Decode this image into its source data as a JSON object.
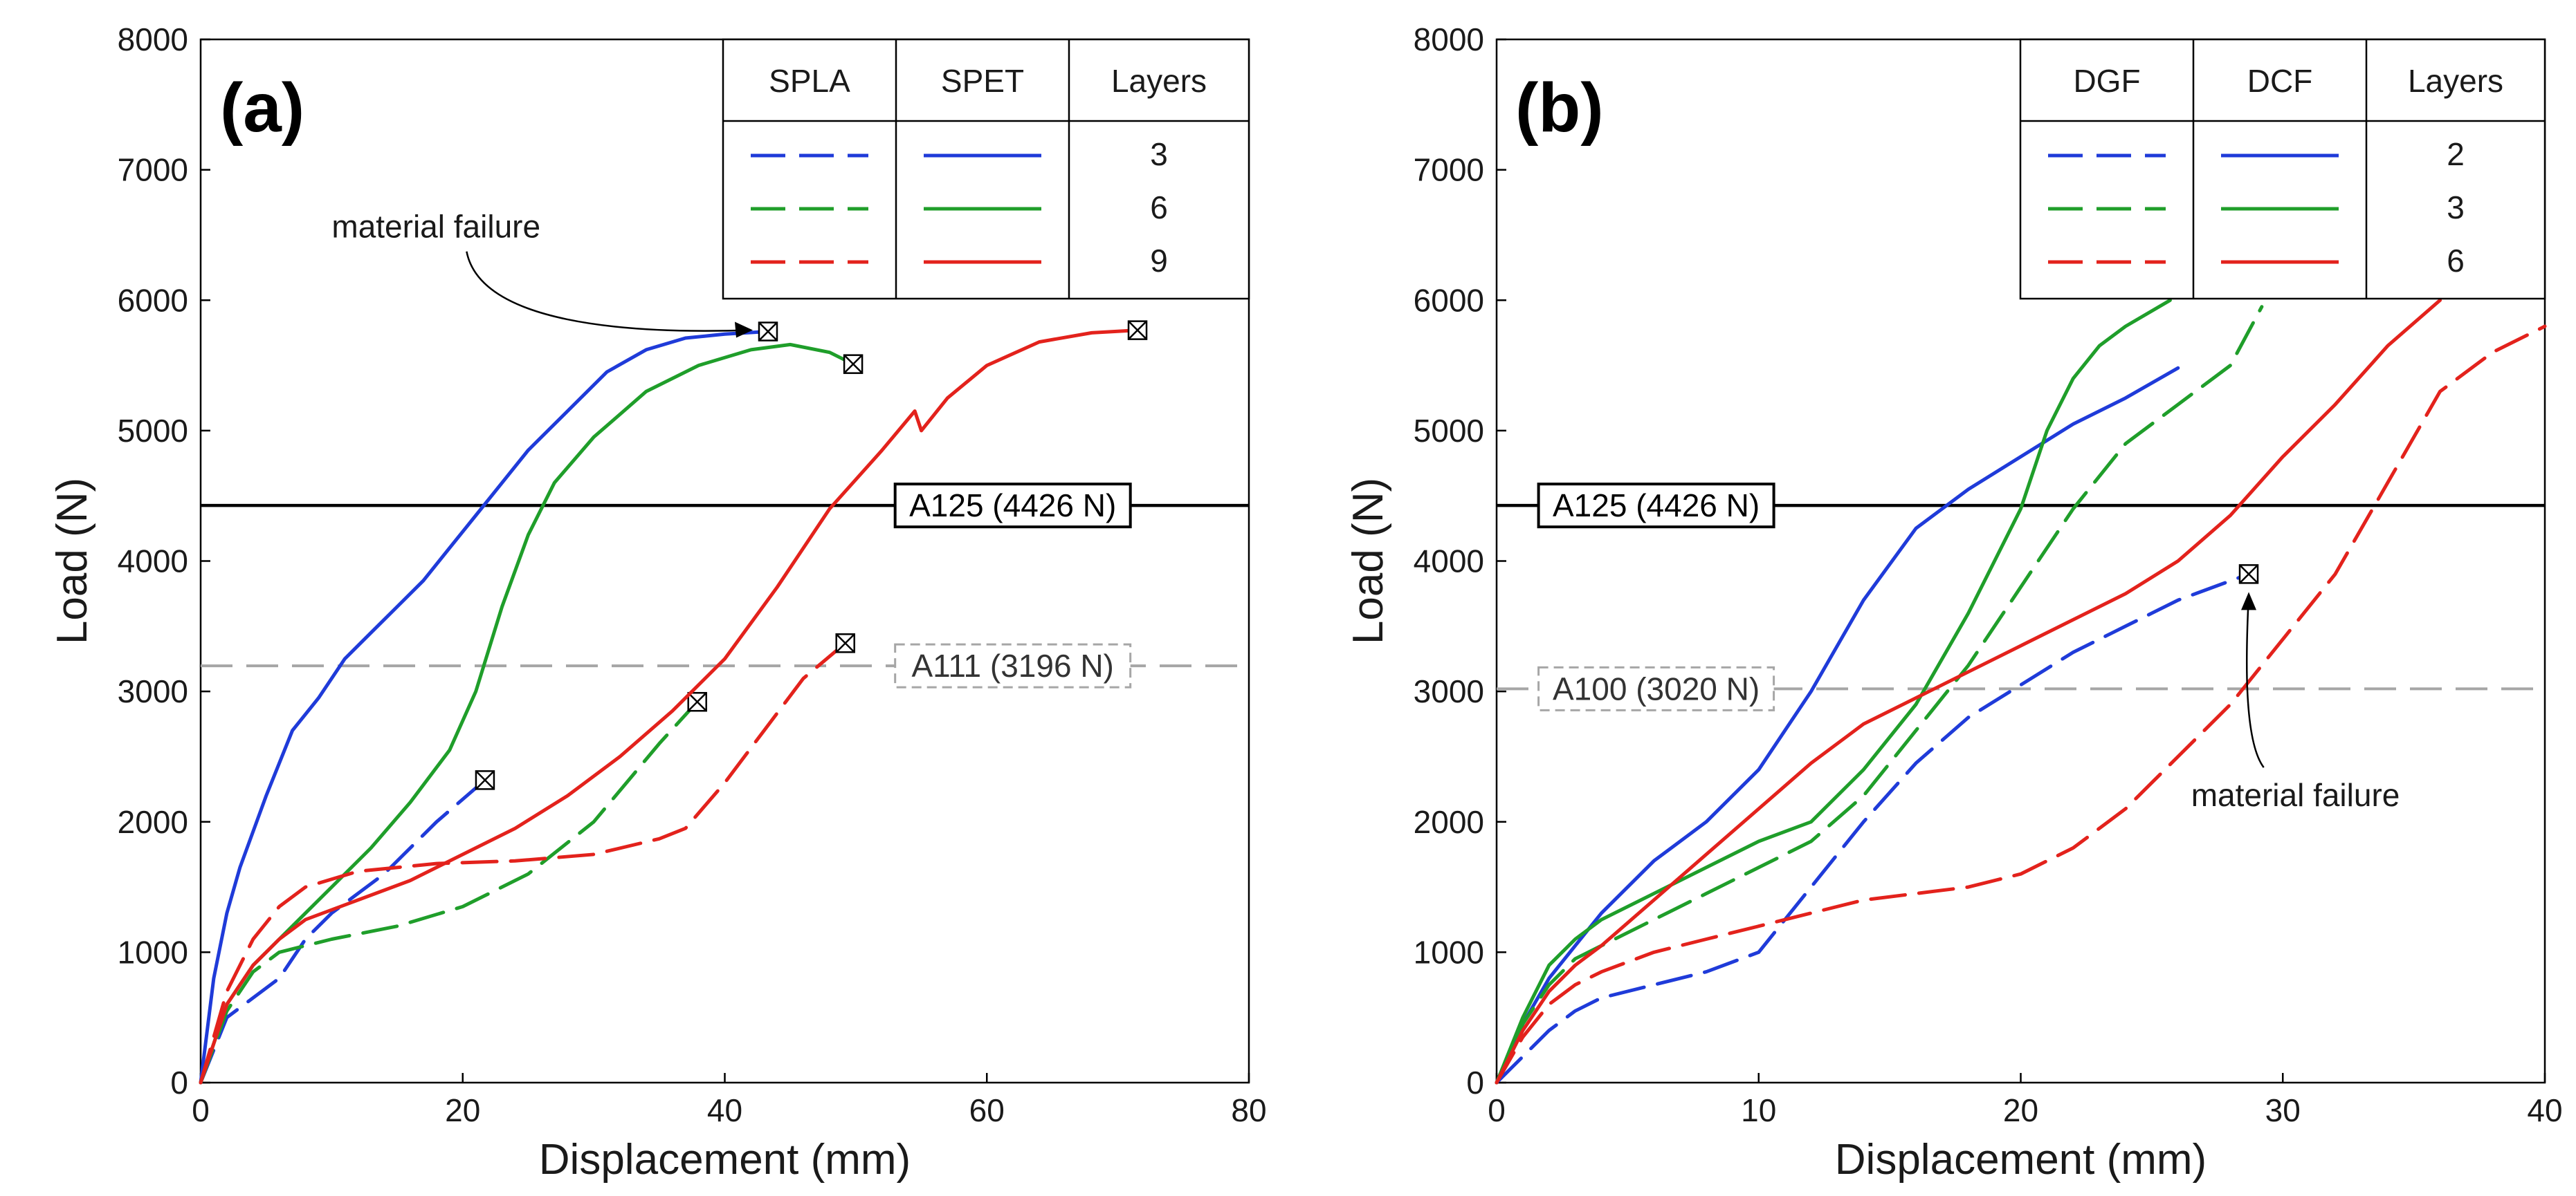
{
  "chart_data": [
    {
      "type": "line",
      "panel_label": "(a)",
      "xlabel": "Displacement (mm)",
      "ylabel": "Load (N)",
      "xlim": [
        0,
        80
      ],
      "ylim": [
        0,
        8000
      ],
      "xticks": [
        "0",
        "20",
        "40",
        "60",
        "80"
      ],
      "yticks": [
        "0",
        "1000",
        "2000",
        "3000",
        "4000",
        "5000",
        "6000",
        "7000",
        "8000"
      ],
      "legend": {
        "headers": [
          "SPLA",
          "SPET",
          "Layers"
        ],
        "rows": [
          "3",
          "6",
          "9"
        ]
      },
      "reference_lines": [
        {
          "label": "A125 (4426 N)",
          "value": 4426,
          "style": "solid",
          "color": "#000000",
          "label_x": 53
        },
        {
          "label": "A111 (3196 N)",
          "value": 3196,
          "style": "dashed",
          "color": "#a6a6a6",
          "label_x": 53
        }
      ],
      "annotation": {
        "text": "material failure",
        "text_x": 10,
        "text_y": 6480,
        "target_x": 43.3,
        "target_y": 5760
      },
      "series": [
        {
          "name": "SPLA 3",
          "color": "#1f3bd9",
          "dash": "dashed",
          "x": [
            0,
            2,
            4,
            6,
            8,
            10,
            14,
            18,
            21.7
          ],
          "y": [
            0,
            500,
            650,
            800,
            1100,
            1300,
            1600,
            2000,
            2320
          ],
          "failure": [
            21.7,
            2320
          ]
        },
        {
          "name": "SPET 3",
          "color": "#1f3bd9",
          "dash": "solid",
          "x": [
            0,
            1,
            2,
            3,
            5,
            7,
            9,
            11,
            13,
            15,
            17,
            19,
            21,
            23,
            25,
            28,
            31,
            34,
            37,
            40,
            43.3
          ],
          "y": [
            0,
            800,
            1300,
            1650,
            2200,
            2700,
            2950,
            3250,
            3450,
            3650,
            3850,
            4100,
            4350,
            4600,
            4850,
            5150,
            5450,
            5620,
            5710,
            5740,
            5760
          ],
          "failure": [
            43.3,
            5760
          ]
        },
        {
          "name": "SPLA 6",
          "color": "#1f9e2a",
          "dash": "dashed",
          "x": [
            0,
            2,
            4,
            6,
            10,
            15,
            20,
            25,
            30,
            35,
            37.9
          ],
          "y": [
            0,
            550,
            850,
            1000,
            1100,
            1200,
            1350,
            1600,
            2000,
            2600,
            2920
          ],
          "failure": [
            37.9,
            2920
          ]
        },
        {
          "name": "SPET 6",
          "color": "#1f9e2a",
          "dash": "solid",
          "x": [
            0,
            2,
            4,
            6,
            8,
            10,
            13,
            16,
            19,
            21,
            23,
            25,
            27,
            30,
            34,
            38,
            42,
            45,
            48,
            49.8
          ],
          "y": [
            0,
            600,
            900,
            1100,
            1300,
            1500,
            1800,
            2150,
            2550,
            3000,
            3650,
            4200,
            4600,
            4950,
            5300,
            5500,
            5620,
            5660,
            5600,
            5510
          ],
          "failure": [
            49.8,
            5510
          ]
        },
        {
          "name": "SPLA 9",
          "color": "#e3221c",
          "dash": "dashed",
          "x": [
            0,
            2,
            4,
            6,
            8,
            12,
            18,
            24,
            30,
            35,
            37,
            40,
            43,
            46,
            49.2
          ],
          "y": [
            0,
            700,
            1100,
            1350,
            1500,
            1620,
            1680,
            1700,
            1750,
            1870,
            1950,
            2300,
            2700,
            3100,
            3370
          ],
          "failure": [
            49.2,
            3370
          ]
        },
        {
          "name": "SPET 9",
          "color": "#e3221c",
          "dash": "solid",
          "x": [
            0,
            2,
            4,
            6,
            8,
            12,
            16,
            20,
            24,
            28,
            32,
            36,
            40,
            44,
            48,
            52,
            54.5,
            55,
            57,
            60,
            64,
            68,
            71.5
          ],
          "y": [
            0,
            600,
            900,
            1100,
            1250,
            1400,
            1550,
            1750,
            1950,
            2200,
            2500,
            2850,
            3250,
            3800,
            4400,
            4850,
            5150,
            5000,
            5250,
            5500,
            5680,
            5750,
            5770
          ],
          "failure": [
            71.5,
            5770
          ]
        }
      ]
    },
    {
      "type": "line",
      "panel_label": "(b)",
      "xlabel": "Displacement (mm)",
      "ylabel": "Load (N)",
      "xlim": [
        0,
        40
      ],
      "ylim": [
        0,
        8000
      ],
      "xticks": [
        "0",
        "10",
        "20",
        "30",
        "40"
      ],
      "yticks": [
        "0",
        "1000",
        "2000",
        "3000",
        "4000",
        "5000",
        "6000",
        "7000",
        "8000"
      ],
      "legend": {
        "headers": [
          "DGF",
          "DCF",
          "Layers"
        ],
        "rows": [
          "2",
          "3",
          "6"
        ]
      },
      "reference_lines": [
        {
          "label": "A125 (4426 N)",
          "value": 4426,
          "style": "solid",
          "color": "#000000",
          "label_x": 1.6
        },
        {
          "label": "A100 (3020 N)",
          "value": 3020,
          "style": "dashed",
          "color": "#a6a6a6",
          "label_x": 1.6
        }
      ],
      "annotation": {
        "text": "material failure",
        "text_x": 26.5,
        "text_y": 2120,
        "target_x": 28.7,
        "target_y": 3900
      },
      "series": [
        {
          "name": "DGF 2",
          "color": "#1f3bd9",
          "dash": "dashed",
          "x": [
            0,
            1,
            2,
            3,
            4,
            6,
            8,
            10,
            12,
            14,
            16,
            18,
            20,
            22,
            24,
            26,
            28.7
          ],
          "y": [
            0,
            200,
            400,
            550,
            650,
            750,
            850,
            1000,
            1500,
            2000,
            2450,
            2800,
            3050,
            3300,
            3500,
            3700,
            3900
          ],
          "failure": [
            28.7,
            3900
          ]
        },
        {
          "name": "DCF 2",
          "color": "#1f3bd9",
          "dash": "solid",
          "x": [
            0,
            1,
            2,
            3,
            4,
            6,
            8,
            10,
            12,
            14,
            16,
            17,
            18,
            20,
            22,
            24,
            26
          ],
          "y": [
            0,
            450,
            800,
            1050,
            1300,
            1700,
            2000,
            2400,
            3000,
            3700,
            4250,
            4400,
            4550,
            4800,
            5050,
            5250,
            5480
          ]
        },
        {
          "name": "DGF 3",
          "color": "#1f9e2a",
          "dash": "dashed",
          "x": [
            0,
            1,
            2,
            3,
            4,
            6,
            8,
            10,
            12,
            14,
            16,
            18,
            20,
            22,
            24,
            26,
            28,
            29.2
          ],
          "y": [
            0,
            450,
            750,
            950,
            1050,
            1250,
            1450,
            1650,
            1850,
            2200,
            2700,
            3200,
            3800,
            4400,
            4900,
            5200,
            5500,
            5950
          ]
        },
        {
          "name": "DCF 3",
          "color": "#1f9e2a",
          "dash": "solid",
          "x": [
            0,
            1,
            2,
            3,
            4,
            6,
            8,
            10,
            12,
            14,
            16,
            18,
            20,
            21,
            22,
            23,
            24,
            25.7
          ],
          "y": [
            0,
            500,
            900,
            1100,
            1250,
            1450,
            1650,
            1850,
            2000,
            2400,
            2900,
            3600,
            4400,
            5000,
            5400,
            5650,
            5800,
            6000
          ]
        },
        {
          "name": "DGF 6",
          "color": "#e3221c",
          "dash": "dashed",
          "x": [
            0,
            1,
            2,
            3,
            4,
            6,
            8,
            10,
            12,
            14,
            16,
            18,
            20,
            22,
            24,
            26,
            28,
            30,
            32,
            34,
            36,
            38,
            40
          ],
          "y": [
            0,
            350,
            600,
            750,
            850,
            1000,
            1100,
            1200,
            1300,
            1400,
            1450,
            1500,
            1600,
            1800,
            2100,
            2500,
            2900,
            3400,
            3900,
            4600,
            5300,
            5600,
            5800
          ]
        },
        {
          "name": "DCF 6",
          "color": "#e3221c",
          "dash": "solid",
          "x": [
            0,
            1,
            2,
            3,
            4,
            6,
            8,
            10,
            12,
            14,
            16,
            18,
            20,
            22,
            24,
            26,
            28,
            30,
            32,
            34,
            36
          ],
          "y": [
            0,
            400,
            700,
            900,
            1050,
            1400,
            1750,
            2100,
            2450,
            2750,
            2950,
            3150,
            3350,
            3550,
            3750,
            4000,
            4350,
            4800,
            5200,
            5650,
            6000
          ]
        }
      ]
    }
  ]
}
